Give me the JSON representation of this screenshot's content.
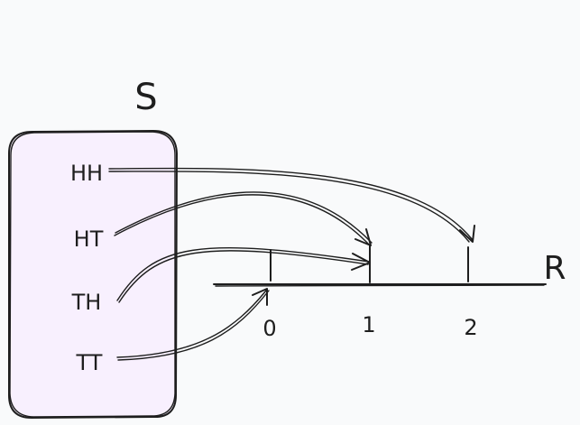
{
  "sample_space": {
    "label": "S",
    "fill": "#f8f0fe",
    "outcomes": [
      "HH",
      "HT",
      "TH",
      "TT"
    ]
  },
  "real_line": {
    "label": "R",
    "ticks": [
      "0",
      "1",
      "2"
    ]
  },
  "mapping": [
    {
      "from": "HH",
      "to": "2"
    },
    {
      "from": "HT",
      "to": "1"
    },
    {
      "from": "TH",
      "to": "1"
    },
    {
      "from": "TT",
      "to": "0"
    }
  ],
  "colors": {
    "background": "#f9fafb",
    "stroke": "#1e1e1e"
  }
}
